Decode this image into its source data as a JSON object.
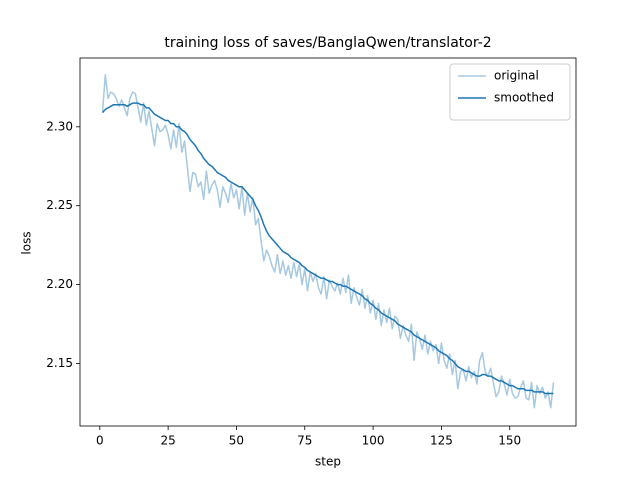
{
  "chart_data": {
    "type": "line",
    "title": "training loss of saves/BanglaQwen/translator-2",
    "x_label": "step",
    "y_label": "loss",
    "x": [
      1,
      2,
      3,
      4,
      5,
      6,
      7,
      8,
      9,
      10,
      11,
      12,
      13,
      14,
      15,
      16,
      17,
      18,
      19,
      20,
      21,
      22,
      23,
      24,
      25,
      26,
      27,
      28,
      29,
      30,
      31,
      32,
      33,
      34,
      35,
      36,
      37,
      38,
      39,
      40,
      41,
      42,
      43,
      44,
      45,
      46,
      47,
      48,
      49,
      50,
      51,
      52,
      53,
      54,
      55,
      56,
      57,
      58,
      59,
      60,
      61,
      62,
      63,
      64,
      65,
      66,
      67,
      68,
      69,
      70,
      71,
      72,
      73,
      74,
      75,
      76,
      77,
      78,
      79,
      80,
      81,
      82,
      83,
      84,
      85,
      86,
      87,
      88,
      89,
      90,
      91,
      92,
      93,
      94,
      95,
      96,
      97,
      98,
      99,
      100,
      101,
      102,
      103,
      104,
      105,
      106,
      107,
      108,
      109,
      110,
      111,
      112,
      113,
      114,
      115,
      116,
      117,
      118,
      119,
      120,
      121,
      122,
      123,
      124,
      125,
      126,
      127,
      128,
      129,
      130,
      131,
      132,
      133,
      134,
      135,
      136,
      137,
      138,
      139,
      140,
      141,
      142,
      143,
      144,
      145,
      146,
      147,
      148,
      149,
      150,
      151,
      152,
      153,
      154,
      155,
      156,
      157,
      158,
      159,
      160,
      161,
      162,
      163,
      164,
      165,
      166
    ],
    "series": [
      {
        "name": "original",
        "color": "#a6c9e1",
        "values": [
          2.309,
          2.333,
          2.318,
          2.322,
          2.321,
          2.318,
          2.313,
          2.317,
          2.312,
          2.307,
          2.318,
          2.322,
          2.321,
          2.312,
          2.303,
          2.315,
          2.301,
          2.31,
          2.299,
          2.288,
          2.302,
          2.297,
          2.298,
          2.301,
          2.295,
          2.286,
          2.298,
          2.287,
          2.302,
          2.284,
          2.291,
          2.275,
          2.259,
          2.271,
          2.27,
          2.262,
          2.265,
          2.254,
          2.272,
          2.258,
          2.263,
          2.266,
          2.26,
          2.249,
          2.262,
          2.258,
          2.252,
          2.264,
          2.255,
          2.26,
          2.248,
          2.262,
          2.244,
          2.258,
          2.246,
          2.255,
          2.238,
          2.242,
          2.228,
          2.215,
          2.222,
          2.218,
          2.212,
          2.208,
          2.219,
          2.207,
          2.215,
          2.206,
          2.212,
          2.204,
          2.214,
          2.205,
          2.213,
          2.2,
          2.21,
          2.196,
          2.208,
          2.202,
          2.207,
          2.198,
          2.194,
          2.205,
          2.191,
          2.203,
          2.199,
          2.196,
          2.201,
          2.194,
          2.204,
          2.195,
          2.206,
          2.188,
          2.198,
          2.192,
          2.187,
          2.197,
          2.185,
          2.193,
          2.182,
          2.19,
          2.178,
          2.188,
          2.174,
          2.184,
          2.176,
          2.185,
          2.172,
          2.18,
          2.178,
          2.166,
          2.174,
          2.168,
          2.164,
          2.175,
          2.152,
          2.17,
          2.166,
          2.159,
          2.168,
          2.156,
          2.164,
          2.158,
          2.162,
          2.15,
          2.163,
          2.152,
          2.147,
          2.156,
          2.143,
          2.152,
          2.134,
          2.145,
          2.146,
          2.139,
          2.148,
          2.141,
          2.145,
          2.137,
          2.152,
          2.157,
          2.145,
          2.142,
          2.147,
          2.138,
          2.129,
          2.132,
          2.142,
          2.137,
          2.13,
          2.14,
          2.131,
          2.128,
          2.129,
          2.135,
          2.139,
          2.128,
          2.127,
          2.138,
          2.122,
          2.136,
          2.131,
          2.135,
          2.128,
          2.132,
          2.122,
          2.138
        ]
      },
      {
        "name": "smoothed",
        "color": "#1f77b4",
        "values": [
          2.309,
          2.311,
          2.312,
          2.313,
          2.314,
          2.314,
          2.314,
          2.314,
          2.314,
          2.313,
          2.314,
          2.315,
          2.315,
          2.315,
          2.314,
          2.314,
          2.312,
          2.312,
          2.31,
          2.308,
          2.307,
          2.306,
          2.305,
          2.304,
          2.304,
          2.302,
          2.302,
          2.3,
          2.3,
          2.298,
          2.297,
          2.295,
          2.292,
          2.29,
          2.288,
          2.285,
          2.283,
          2.28,
          2.278,
          2.276,
          2.275,
          2.273,
          2.271,
          2.27,
          2.269,
          2.268,
          2.266,
          2.265,
          2.264,
          2.263,
          2.262,
          2.262,
          2.26,
          2.258,
          2.256,
          2.254,
          2.25,
          2.247,
          2.243,
          2.238,
          2.234,
          2.231,
          2.229,
          2.227,
          2.225,
          2.223,
          2.221,
          2.22,
          2.219,
          2.217,
          2.216,
          2.215,
          2.214,
          2.212,
          2.211,
          2.209,
          2.208,
          2.207,
          2.206,
          2.205,
          2.204,
          2.204,
          2.203,
          2.202,
          2.202,
          2.201,
          2.2,
          2.2,
          2.199,
          2.199,
          2.198,
          2.197,
          2.196,
          2.195,
          2.194,
          2.193,
          2.191,
          2.19,
          2.188,
          2.187,
          2.185,
          2.184,
          2.182,
          2.181,
          2.18,
          2.179,
          2.178,
          2.177,
          2.175,
          2.174,
          2.173,
          2.172,
          2.171,
          2.17,
          2.168,
          2.167,
          2.166,
          2.165,
          2.164,
          2.163,
          2.162,
          2.161,
          2.16,
          2.158,
          2.157,
          2.156,
          2.155,
          2.153,
          2.152,
          2.15,
          2.148,
          2.147,
          2.146,
          2.145,
          2.145,
          2.144,
          2.143,
          2.142,
          2.142,
          2.143,
          2.143,
          2.142,
          2.142,
          2.141,
          2.14,
          2.139,
          2.139,
          2.138,
          2.137,
          2.136,
          2.136,
          2.135,
          2.134,
          2.134,
          2.134,
          2.133,
          2.133,
          2.133,
          2.132,
          2.132,
          2.132,
          2.132,
          2.131,
          2.131,
          2.131,
          2.131
        ]
      }
    ],
    "xlim": [
      -7.25,
      174.25
    ],
    "ylim": [
      2.1104,
      2.3436
    ],
    "xticks": [
      0,
      25,
      50,
      75,
      100,
      125,
      150
    ],
    "yticks": [
      2.15,
      {
        "value": 2.2,
        "label": "2.20"
      },
      2.25,
      {
        "value": 2.3,
        "label": "2.30"
      }
    ],
    "grid": false,
    "legend": "upper right"
  }
}
